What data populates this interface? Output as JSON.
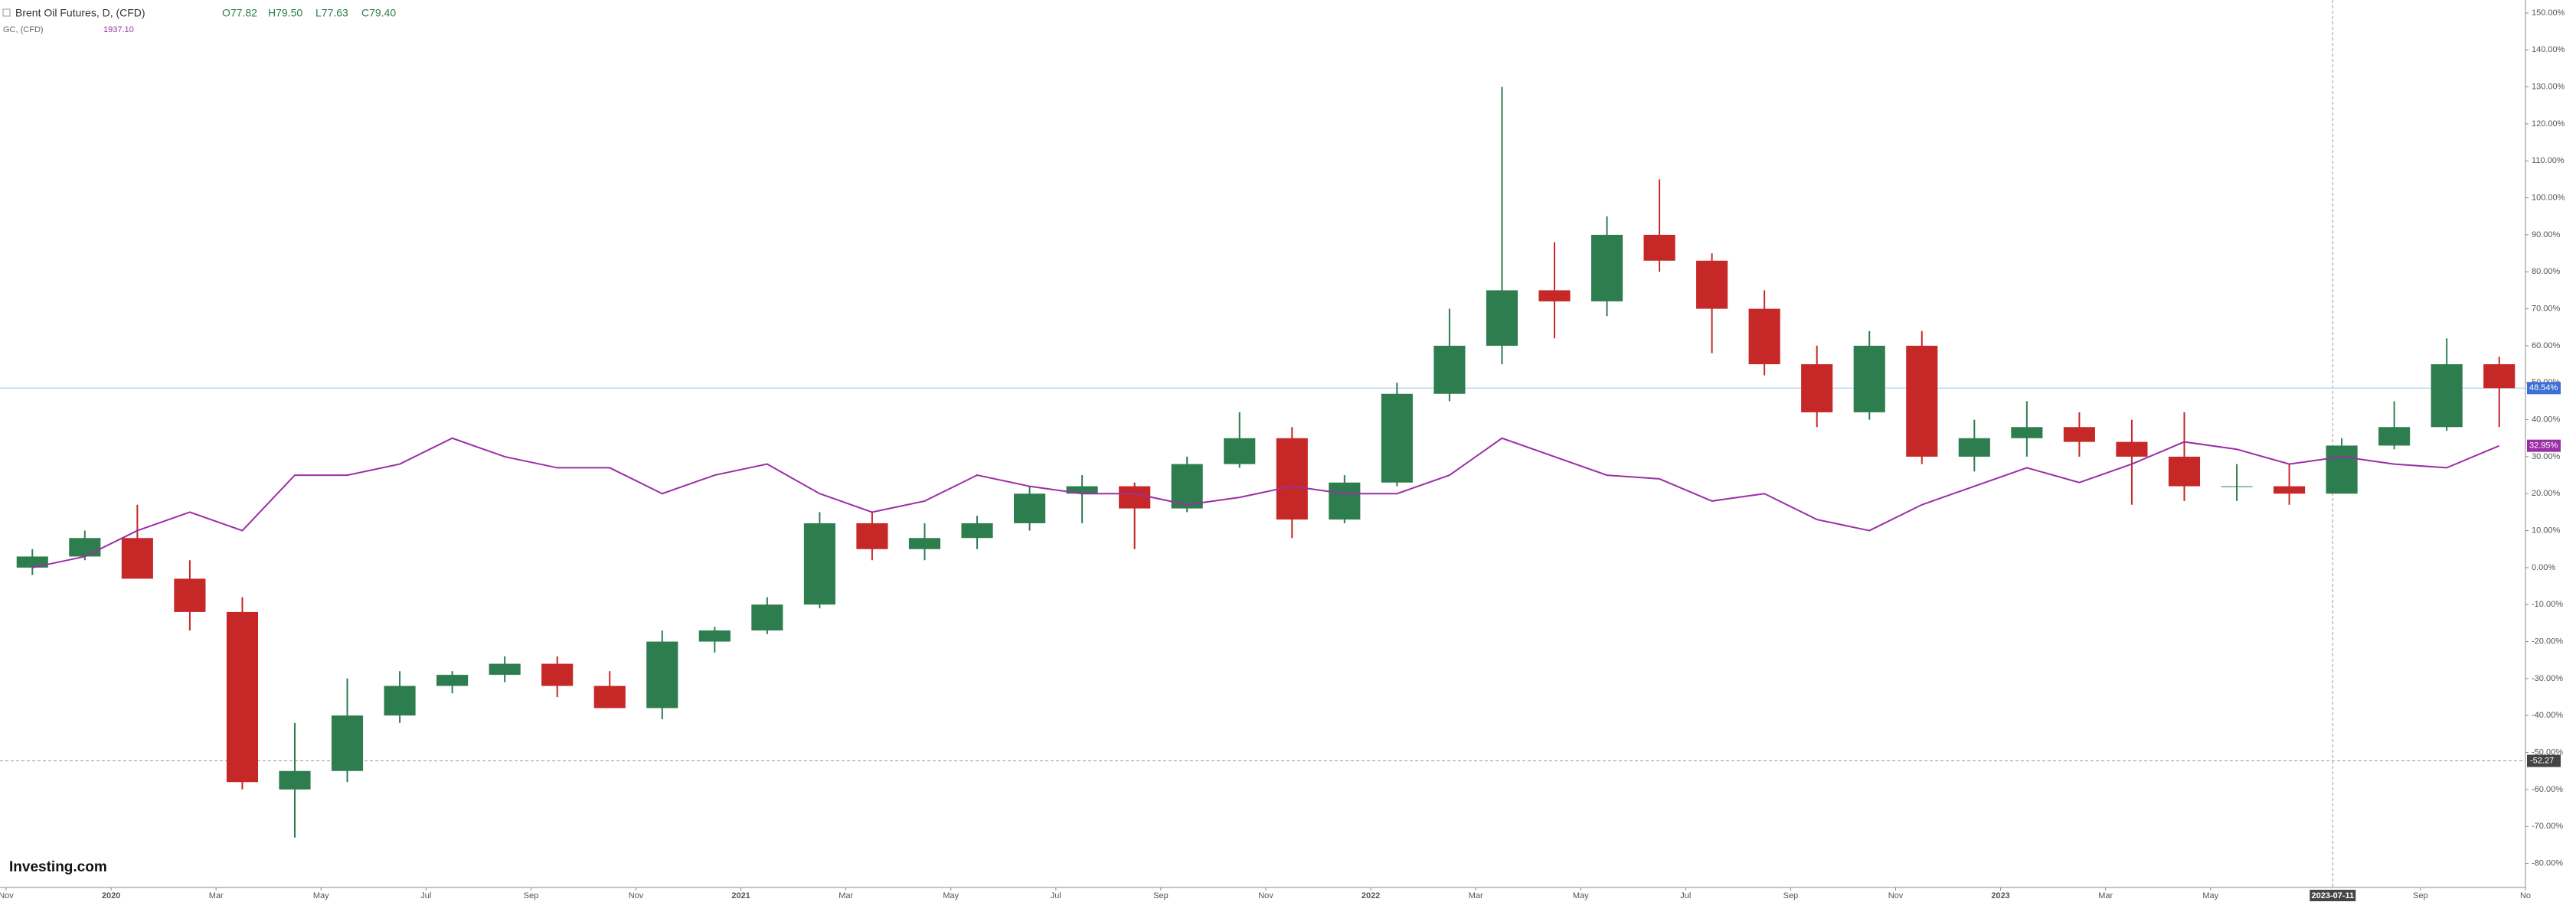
{
  "chart_data": {
    "type": "candlestick",
    "title": "Brent Oil Futures, D, (CFD)",
    "ohlc_labels": [
      "O77.82",
      "H79.50",
      "L77.63",
      "C79.40"
    ],
    "compare_title": "GC, (CFD)",
    "compare_value": "1937.10",
    "logo": "Investing.com",
    "xlim": [
      "2019-11",
      "2023-11"
    ],
    "xticks": [
      {
        "value": "2019-11",
        "label": "Nov"
      },
      {
        "value": "2020-01",
        "label": "2020"
      },
      {
        "value": "2020-03",
        "label": "Mar"
      },
      {
        "value": "2020-05",
        "label": "May"
      },
      {
        "value": "2020-07",
        "label": "Jul"
      },
      {
        "value": "2020-09",
        "label": "Sep"
      },
      {
        "value": "2020-11",
        "label": "Nov"
      },
      {
        "value": "2021-01",
        "label": "2021"
      },
      {
        "value": "2021-03",
        "label": "Mar"
      },
      {
        "value": "2021-05",
        "label": "May"
      },
      {
        "value": "2021-07",
        "label": "Jul"
      },
      {
        "value": "2021-09",
        "label": "Sep"
      },
      {
        "value": "2021-11",
        "label": "Nov"
      },
      {
        "value": "2022-01",
        "label": "2022"
      },
      {
        "value": "2022-03",
        "label": "Mar"
      },
      {
        "value": "2022-05",
        "label": "May"
      },
      {
        "value": "2022-07",
        "label": "Jul"
      },
      {
        "value": "2022-09",
        "label": "Sep"
      },
      {
        "value": "2022-11",
        "label": "Nov"
      },
      {
        "value": "2023-01",
        "label": "2023"
      },
      {
        "value": "2023-03",
        "label": "Mar"
      },
      {
        "value": "2023-05",
        "label": "May"
      },
      {
        "value": "2023-09",
        "label": "Sep"
      },
      {
        "value": "2023-11",
        "label": "No"
      }
    ],
    "ylim": [
      -86.5,
      153.5
    ],
    "yticks": [
      {
        "value": 150,
        "label": "150.00%"
      },
      {
        "value": 140,
        "label": "140.00%"
      },
      {
        "value": 130,
        "label": "130.00%"
      },
      {
        "value": 120,
        "label": "120.00%"
      },
      {
        "value": 110,
        "label": "110.00%"
      },
      {
        "value": 100,
        "label": "100.00%"
      },
      {
        "value": 90,
        "label": "90.00%"
      },
      {
        "value": 80,
        "label": "80.00%"
      },
      {
        "value": 70,
        "label": "70.00%"
      },
      {
        "value": 60,
        "label": "60.00%"
      },
      {
        "value": 50,
        "label": "50.00%"
      },
      {
        "value": 40,
        "label": "40.00%"
      },
      {
        "value": 30,
        "label": "30.00%"
      },
      {
        "value": 20,
        "label": "20.00%"
      },
      {
        "value": 10,
        "label": "10.00%"
      },
      {
        "value": 0,
        "label": "0.00%"
      },
      {
        "value": -10,
        "label": "-10.00%"
      },
      {
        "value": -20,
        "label": "-20.00%"
      },
      {
        "value": -30,
        "label": "-30.00%"
      },
      {
        "value": -40,
        "label": "-40.00%"
      },
      {
        "value": -50,
        "label": "-50.00%"
      },
      {
        "value": -60,
        "label": "-60.00%"
      },
      {
        "value": -70,
        "label": "-70.00%"
      },
      {
        "value": -80,
        "label": "-80.00%"
      }
    ],
    "x": [
      "2019-11",
      "2019-12",
      "2020-01",
      "2020-02",
      "2020-03",
      "2020-04",
      "2020-05",
      "2020-06",
      "2020-07",
      "2020-08",
      "2020-09",
      "2020-10",
      "2020-11",
      "2020-12",
      "2021-01",
      "2021-02",
      "2021-03",
      "2021-04",
      "2021-05",
      "2021-06",
      "2021-07",
      "2021-08",
      "2021-09",
      "2021-10",
      "2021-11",
      "2021-12",
      "2022-01",
      "2022-02",
      "2022-03",
      "2022-04",
      "2022-05",
      "2022-06",
      "2022-07",
      "2022-08",
      "2022-09",
      "2022-10",
      "2022-11",
      "2022-12",
      "2023-01",
      "2023-02",
      "2023-03",
      "2023-04",
      "2023-05",
      "2023-06",
      "2023-07",
      "2023-08",
      "2023-09",
      "2023-10"
    ],
    "series": [
      {
        "name": "Brent Oil Futures, D, (CFD)",
        "type": "candlestick",
        "up_color": "#2e7d4f",
        "down_color": "#c62828",
        "open": [
          0,
          3,
          8,
          -3,
          -12,
          -60,
          -55,
          -40,
          -32,
          -29,
          -26,
          -32,
          -38,
          -20,
          -17,
          -10,
          12,
          5,
          8,
          12,
          20,
          22,
          16,
          28,
          35,
          13,
          23,
          47,
          60,
          75,
          72,
          90,
          83,
          70,
          55,
          42,
          60,
          30,
          35,
          38,
          34,
          30,
          22,
          22,
          20,
          33,
          38,
          55
        ],
        "high": [
          5,
          10,
          17,
          2,
          -8,
          -42,
          -30,
          -28,
          -28,
          -24,
          -24,
          -28,
          -17,
          -16,
          -8,
          15,
          15,
          12,
          14,
          22,
          25,
          23,
          30,
          42,
          38,
          25,
          50,
          70,
          130,
          88,
          95,
          105,
          85,
          75,
          60,
          64,
          64,
          40,
          45,
          42,
          40,
          42,
          28,
          28,
          35,
          45,
          62,
          57
        ],
        "low": [
          -2,
          2,
          -3,
          -17,
          -60,
          -73,
          -58,
          -42,
          -34,
          -31,
          -35,
          -38,
          -41,
          -23,
          -18,
          -11,
          2,
          2,
          5,
          10,
          12,
          5,
          15,
          27,
          8,
          12,
          22,
          45,
          55,
          62,
          68,
          80,
          58,
          52,
          38,
          40,
          28,
          26,
          30,
          30,
          17,
          18,
          18,
          17,
          20,
          32,
          37,
          38
        ],
        "close": [
          3,
          8,
          -3,
          -12,
          -58,
          -55,
          -40,
          -32,
          -29,
          -26,
          -32,
          -38,
          -20,
          -17,
          -10,
          12,
          5,
          8,
          12,
          20,
          22,
          16,
          28,
          35,
          13,
          23,
          47,
          60,
          75,
          72,
          90,
          83,
          70,
          55,
          42,
          60,
          30,
          35,
          38,
          34,
          30,
          22,
          22,
          20,
          33,
          38,
          55,
          48.54
        ],
        "last_label": "48.54%",
        "label_color": "#3d6fd4",
        "line_color": "#9cc3e6"
      },
      {
        "name": "GC, (CFD)",
        "type": "line",
        "color": "#9b2fa5",
        "values": [
          0,
          3,
          10,
          15,
          10,
          25,
          25,
          28,
          35,
          30,
          27,
          27,
          20,
          25,
          28,
          20,
          15,
          18,
          25,
          22,
          20,
          20,
          17,
          19,
          22,
          20,
          20,
          25,
          35,
          30,
          25,
          24,
          18,
          20,
          13,
          10,
          17,
          22,
          27,
          23,
          28,
          34,
          32,
          28,
          30,
          28,
          27,
          32.95
        ],
        "last_label": "32.95%"
      }
    ],
    "crosshair": {
      "x": {
        "value": "2023-07-11",
        "label": "2023-07-11"
      },
      "y": {
        "value": -52.27,
        "label": "-52.27"
      }
    }
  }
}
